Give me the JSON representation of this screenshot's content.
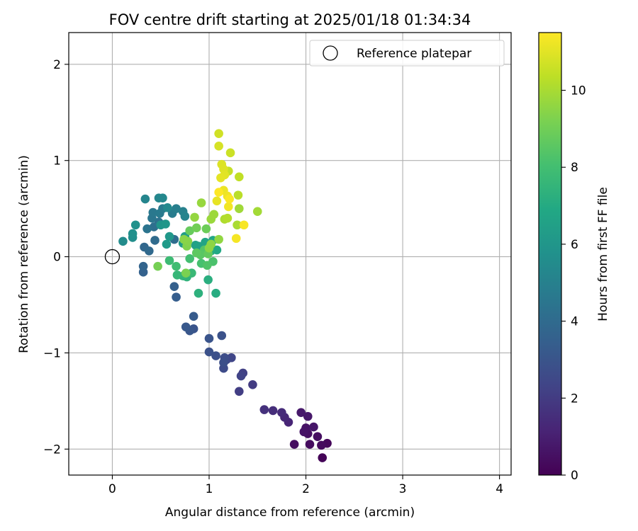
{
  "chart_data": {
    "type": "scatter",
    "title": "FOV centre drift starting at 2025/01/18 01:34:34",
    "xlabel": "Angular distance from reference (arcmin)",
    "ylabel": "Rotation from reference (arcmin)",
    "xlim": [
      -0.45,
      4.12
    ],
    "ylim": [
      -2.27,
      2.33
    ],
    "xticks": [
      0,
      1,
      2,
      3,
      4
    ],
    "yticks": [
      -2,
      -1,
      0,
      1,
      2
    ],
    "xtick_labels": [
      "0",
      "1",
      "2",
      "3",
      "4"
    ],
    "ytick_labels": [
      "−2",
      "−1",
      "0",
      "1",
      "2"
    ],
    "grid": true,
    "legend": {
      "placement": "upper right",
      "label": "Reference platepar"
    },
    "reference_point": {
      "x": 0,
      "y": 0
    },
    "colorbar": {
      "label": "Hours from first FF file",
      "colormap": "viridis",
      "range": [
        0,
        11.5
      ],
      "ticks": [
        0,
        2,
        4,
        6,
        8,
        10
      ],
      "tick_labels": [
        "0",
        "2",
        "4",
        "6",
        "8",
        "10"
      ]
    },
    "points": [
      {
        "x": 2.17,
        "y": -2.09,
        "h": 0.1
      },
      {
        "x": 2.22,
        "y": -1.94,
        "h": 0.2
      },
      {
        "x": 2.16,
        "y": -1.96,
        "h": 0.3
      },
      {
        "x": 2.04,
        "y": -1.95,
        "h": 0.35
      },
      {
        "x": 1.88,
        "y": -1.95,
        "h": 0.4
      },
      {
        "x": 2.12,
        "y": -1.87,
        "h": 0.45
      },
      {
        "x": 2.02,
        "y": -1.84,
        "h": 0.5
      },
      {
        "x": 2.0,
        "y": -1.78,
        "h": 0.55
      },
      {
        "x": 1.98,
        "y": -1.82,
        "h": 0.6
      },
      {
        "x": 2.08,
        "y": -1.77,
        "h": 0.7
      },
      {
        "x": 2.02,
        "y": -1.66,
        "h": 0.75
      },
      {
        "x": 1.95,
        "y": -1.62,
        "h": 0.8
      },
      {
        "x": 1.82,
        "y": -1.72,
        "h": 1.2
      },
      {
        "x": 1.78,
        "y": -1.67,
        "h": 1.3
      },
      {
        "x": 1.75,
        "y": -1.62,
        "h": 1.4
      },
      {
        "x": 1.66,
        "y": -1.6,
        "h": 1.5
      },
      {
        "x": 1.57,
        "y": -1.59,
        "h": 1.6
      },
      {
        "x": 1.45,
        "y": -1.33,
        "h": 2.0
      },
      {
        "x": 1.31,
        "y": -1.4,
        "h": 2.1
      },
      {
        "x": 1.35,
        "y": -1.21,
        "h": 2.2
      },
      {
        "x": 1.33,
        "y": -1.24,
        "h": 2.3
      },
      {
        "x": 1.23,
        "y": -1.05,
        "h": 2.4
      },
      {
        "x": 1.18,
        "y": -1.07,
        "h": 2.5
      },
      {
        "x": 1.15,
        "y": -1.16,
        "h": 2.6
      },
      {
        "x": 1.16,
        "y": -1.05,
        "h": 2.7
      },
      {
        "x": 1.15,
        "y": -1.1,
        "h": 2.75
      },
      {
        "x": 1.07,
        "y": -1.03,
        "h": 2.8
      },
      {
        "x": 1.0,
        "y": -0.99,
        "h": 2.85
      },
      {
        "x": 1.13,
        "y": -0.82,
        "h": 2.9
      },
      {
        "x": 1.0,
        "y": -0.85,
        "h": 3.0
      },
      {
        "x": 0.84,
        "y": -0.75,
        "h": 3.0
      },
      {
        "x": 0.8,
        "y": -0.77,
        "h": 3.1
      },
      {
        "x": 0.76,
        "y": -0.73,
        "h": 3.2
      },
      {
        "x": 0.84,
        "y": -0.62,
        "h": 3.3
      },
      {
        "x": 0.66,
        "y": -0.42,
        "h": 3.4
      },
      {
        "x": 0.64,
        "y": -0.31,
        "h": 3.5
      },
      {
        "x": 0.32,
        "y": -0.16,
        "h": 3.6
      },
      {
        "x": 0.32,
        "y": -0.1,
        "h": 3.7
      },
      {
        "x": 0.33,
        "y": 0.1,
        "h": 3.8
      },
      {
        "x": 0.38,
        "y": 0.06,
        "h": 3.9
      },
      {
        "x": 0.44,
        "y": 0.17,
        "h": 4.0
      },
      {
        "x": 0.64,
        "y": 0.18,
        "h": 4.1
      },
      {
        "x": 0.43,
        "y": 0.31,
        "h": 4.2
      },
      {
        "x": 0.48,
        "y": 0.36,
        "h": 4.3
      },
      {
        "x": 0.36,
        "y": 0.29,
        "h": 4.4
      },
      {
        "x": 0.41,
        "y": 0.4,
        "h": 4.5
      },
      {
        "x": 0.42,
        "y": 0.46,
        "h": 4.6
      },
      {
        "x": 0.49,
        "y": 0.45,
        "h": 4.7
      },
      {
        "x": 0.52,
        "y": 0.5,
        "h": 4.75
      },
      {
        "x": 0.62,
        "y": 0.45,
        "h": 4.8
      },
      {
        "x": 0.66,
        "y": 0.5,
        "h": 4.9
      },
      {
        "x": 0.73,
        "y": 0.47,
        "h": 5.0
      },
      {
        "x": 0.75,
        "y": 0.42,
        "h": 5.1
      },
      {
        "x": 0.34,
        "y": 0.6,
        "h": 5.2
      },
      {
        "x": 0.48,
        "y": 0.61,
        "h": 5.3
      },
      {
        "x": 0.52,
        "y": 0.61,
        "h": 5.35
      },
      {
        "x": 0.57,
        "y": 0.51,
        "h": 5.4
      },
      {
        "x": 0.11,
        "y": 0.16,
        "h": 5.5
      },
      {
        "x": 0.21,
        "y": 0.2,
        "h": 5.6
      },
      {
        "x": 0.21,
        "y": 0.24,
        "h": 5.7
      },
      {
        "x": 0.24,
        "y": 0.33,
        "h": 5.8
      },
      {
        "x": 0.5,
        "y": 0.33,
        "h": 5.9
      },
      {
        "x": 0.55,
        "y": 0.34,
        "h": 6.0
      },
      {
        "x": 0.59,
        "y": 0.21,
        "h": 6.1
      },
      {
        "x": 0.56,
        "y": 0.13,
        "h": 6.2
      },
      {
        "x": 0.73,
        "y": 0.14,
        "h": 6.3
      },
      {
        "x": 0.75,
        "y": 0.21,
        "h": 6.4
      },
      {
        "x": 0.86,
        "y": 0.12,
        "h": 6.5
      },
      {
        "x": 0.89,
        "y": 0.11,
        "h": 6.6
      },
      {
        "x": 0.96,
        "y": 0.15,
        "h": 6.7
      },
      {
        "x": 1.04,
        "y": 0.17,
        "h": 6.8
      },
      {
        "x": 1.08,
        "y": 0.07,
        "h": 6.9
      },
      {
        "x": 1.02,
        "y": 0.06,
        "h": 7.0
      },
      {
        "x": 1.07,
        "y": -0.38,
        "h": 7.1
      },
      {
        "x": 0.99,
        "y": -0.24,
        "h": 7.2
      },
      {
        "x": 0.89,
        "y": -0.38,
        "h": 7.3
      },
      {
        "x": 0.77,
        "y": -0.21,
        "h": 7.4
      },
      {
        "x": 0.73,
        "y": -0.2,
        "h": 7.5
      },
      {
        "x": 0.67,
        "y": -0.19,
        "h": 7.6
      },
      {
        "x": 0.82,
        "y": -0.17,
        "h": 7.7
      },
      {
        "x": 0.59,
        "y": -0.04,
        "h": 7.8
      },
      {
        "x": 0.66,
        "y": -0.1,
        "h": 7.9
      },
      {
        "x": 0.8,
        "y": -0.02,
        "h": 8.0
      },
      {
        "x": 0.92,
        "y": -0.07,
        "h": 8.1
      },
      {
        "x": 1.04,
        "y": -0.05,
        "h": 8.2
      },
      {
        "x": 0.98,
        "y": -0.09,
        "h": 8.3
      },
      {
        "x": 0.95,
        "y": 0.07,
        "h": 8.4
      },
      {
        "x": 0.91,
        "y": 0.02,
        "h": 8.5
      },
      {
        "x": 0.87,
        "y": 0.04,
        "h": 8.6
      },
      {
        "x": 0.99,
        "y": 0.03,
        "h": 8.7
      },
      {
        "x": 0.8,
        "y": 0.27,
        "h": 8.8
      },
      {
        "x": 0.97,
        "y": 0.29,
        "h": 8.9
      },
      {
        "x": 0.87,
        "y": 0.3,
        "h": 9.0
      },
      {
        "x": 0.47,
        "y": -0.1,
        "h": 9.1
      },
      {
        "x": 0.76,
        "y": -0.17,
        "h": 9.2
      },
      {
        "x": 0.77,
        "y": 0.11,
        "h": 9.3
      },
      {
        "x": 0.78,
        "y": 0.16,
        "h": 9.4
      },
      {
        "x": 0.74,
        "y": 0.18,
        "h": 9.45
      },
      {
        "x": 1.0,
        "y": 0.09,
        "h": 9.5
      },
      {
        "x": 1.02,
        "y": 0.13,
        "h": 9.55
      },
      {
        "x": 1.1,
        "y": 0.18,
        "h": 9.6
      },
      {
        "x": 0.85,
        "y": 0.41,
        "h": 9.65
      },
      {
        "x": 0.92,
        "y": 0.56,
        "h": 9.7
      },
      {
        "x": 1.02,
        "y": 0.39,
        "h": 9.75
      },
      {
        "x": 1.05,
        "y": 0.44,
        "h": 9.8
      },
      {
        "x": 1.31,
        "y": 0.5,
        "h": 9.85
      },
      {
        "x": 1.5,
        "y": 0.47,
        "h": 9.9
      },
      {
        "x": 1.29,
        "y": 0.33,
        "h": 10.0
      },
      {
        "x": 1.16,
        "y": 0.39,
        "h": 10.1
      },
      {
        "x": 1.19,
        "y": 0.4,
        "h": 10.2
      },
      {
        "x": 1.3,
        "y": 0.64,
        "h": 10.3
      },
      {
        "x": 1.31,
        "y": 0.83,
        "h": 10.4
      },
      {
        "x": 1.2,
        "y": 0.89,
        "h": 10.5
      },
      {
        "x": 1.22,
        "y": 1.08,
        "h": 10.6
      },
      {
        "x": 1.1,
        "y": 1.28,
        "h": 10.7
      },
      {
        "x": 1.1,
        "y": 1.15,
        "h": 10.8
      },
      {
        "x": 1.13,
        "y": 0.96,
        "h": 10.9
      },
      {
        "x": 1.15,
        "y": 0.91,
        "h": 10.95
      },
      {
        "x": 1.16,
        "y": 0.85,
        "h": 11.0
      },
      {
        "x": 1.12,
        "y": 0.82,
        "h": 11.05
      },
      {
        "x": 1.08,
        "y": 0.58,
        "h": 11.1
      },
      {
        "x": 1.15,
        "y": 0.69,
        "h": 11.2
      },
      {
        "x": 1.19,
        "y": 0.63,
        "h": 11.25
      },
      {
        "x": 1.2,
        "y": 0.52,
        "h": 11.3
      },
      {
        "x": 1.28,
        "y": 0.19,
        "h": 11.35
      },
      {
        "x": 1.36,
        "y": 0.33,
        "h": 11.4
      },
      {
        "x": 1.21,
        "y": 0.6,
        "h": 11.45
      },
      {
        "x": 1.1,
        "y": 0.67,
        "h": 11.5
      }
    ]
  }
}
